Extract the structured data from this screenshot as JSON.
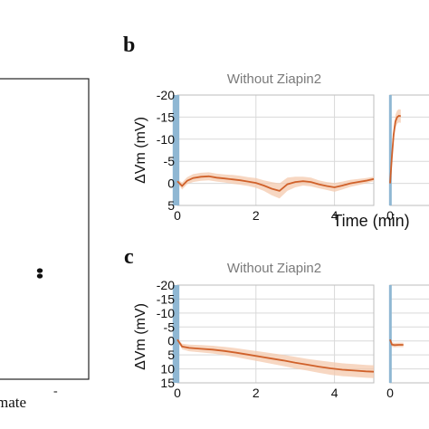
{
  "panels": {
    "a": {
      "xlabel_fragment": "mate",
      "xtick_fragment": "-"
    },
    "b": {
      "letter": "b"
    },
    "c": {
      "letter": "c"
    }
  },
  "chart_data": [
    {
      "type": "scatter",
      "panel": "a",
      "points": [
        [
          0.5,
          0.7
        ],
        [
          0.5,
          0.72
        ]
      ],
      "title": "",
      "xlabel": "mate",
      "ylabel": ""
    },
    {
      "type": "line",
      "panel": "b",
      "title": "Without Ziapin2",
      "xlabel": "Time (min)",
      "ylabel": "ΔVm (mV)",
      "xlim": [
        0,
        5
      ],
      "ylim": [
        5,
        -20
      ],
      "y_inverted": true,
      "xticks": [
        0,
        2,
        4
      ],
      "yticks": [
        -20,
        -15,
        -10,
        -5,
        0,
        5
      ],
      "grid": true,
      "stimulus_band": [
        -0.12,
        0.05
      ],
      "series": [
        {
          "x": [
            0,
            0.12,
            0.25,
            0.4,
            0.6,
            0.8,
            1.0,
            1.2,
            1.4,
            1.6,
            1.8,
            2.0,
            2.2,
            2.4,
            2.6,
            2.8,
            3.0,
            3.2,
            3.4,
            3.6,
            3.8,
            4.0,
            4.2,
            4.4,
            4.6,
            4.8,
            5.0
          ],
          "y": [
            -0.5,
            0.6,
            -0.6,
            -1.2,
            -1.5,
            -1.6,
            -1.3,
            -1.1,
            -0.9,
            -0.7,
            -0.4,
            -0.1,
            0.5,
            1.2,
            1.7,
            0.2,
            -0.3,
            -0.5,
            -0.3,
            0.2,
            0.6,
            0.9,
            0.5,
            0.0,
            -0.3,
            -0.6,
            -1.0
          ],
          "err": [
            0.4,
            0.8,
            0.8,
            0.9,
            0.9,
            0.9,
            0.9,
            0.9,
            1.0,
            1.0,
            1.0,
            1.1,
            1.2,
            1.5,
            1.7,
            1.5,
            1.2,
            1.0,
            1.0,
            0.9,
            0.9,
            1.0,
            0.9,
            0.8,
            0.7,
            0.6,
            0.5
          ]
        }
      ],
      "partner_panel_yticks": [
        -20,
        -15,
        -10,
        -5,
        0,
        5
      ],
      "partner_panel_xticks": [
        0
      ],
      "partner_series": {
        "x": [
          0,
          0.2,
          0.4,
          0.6,
          0.8,
          1.0,
          1.2
        ],
        "y": [
          0,
          -6,
          -11,
          -14,
          -15,
          -15.3,
          -15.2
        ],
        "err": [
          1.0,
          1.5,
          1.5,
          1.5,
          1.5,
          1.5,
          1.5
        ]
      }
    },
    {
      "type": "line",
      "panel": "c",
      "title": "Without Ziapin2",
      "xlabel": "",
      "ylabel": "ΔVm (mV)",
      "xlim": [
        0,
        5
      ],
      "ylim": [
        15,
        -20
      ],
      "y_inverted": true,
      "xticks": [
        0,
        2,
        4
      ],
      "yticks": [
        -20,
        -15,
        -10,
        -5,
        0,
        5,
        10,
        15
      ],
      "grid": true,
      "stimulus_band": [
        -0.12,
        0.05
      ],
      "series": [
        {
          "x": [
            0,
            0.12,
            0.3,
            0.6,
            0.9,
            1.2,
            1.5,
            1.8,
            2.1,
            2.4,
            2.7,
            3.0,
            3.3,
            3.6,
            3.9,
            4.2,
            4.5,
            4.8,
            5.0
          ],
          "y": [
            -0.5,
            2.0,
            2.5,
            2.8,
            3.1,
            3.6,
            4.2,
            4.9,
            5.6,
            6.3,
            7.0,
            7.8,
            8.5,
            9.2,
            9.8,
            10.3,
            10.6,
            10.9,
            11.0
          ],
          "err": [
            0.3,
            1.0,
            1.2,
            1.3,
            1.4,
            1.5,
            1.6,
            1.7,
            1.8,
            1.9,
            2.0,
            2.1,
            2.1,
            2.2,
            2.3,
            2.3,
            2.3,
            2.3,
            2.3
          ]
        }
      ],
      "partner_panel_yticks": [
        -20,
        -15,
        -10,
        -5,
        0,
        5,
        10,
        15
      ],
      "partner_panel_xticks": [
        0
      ],
      "partner_series": {
        "x": [
          0,
          0.2,
          0.5,
          1.0,
          1.5
        ],
        "y": [
          -0.5,
          1.3,
          1.5,
          1.4,
          1.4
        ],
        "err": [
          0.4,
          0.8,
          0.8,
          0.8,
          0.8
        ]
      }
    }
  ],
  "style": {
    "line_color": "#d0612a",
    "band_color": "#f4c9ad",
    "stim_color": "#8fb7d3",
    "grid_color": "#d9d9d9",
    "axis_color": "#8a8a8a",
    "title_color": "#7a7a7a"
  }
}
